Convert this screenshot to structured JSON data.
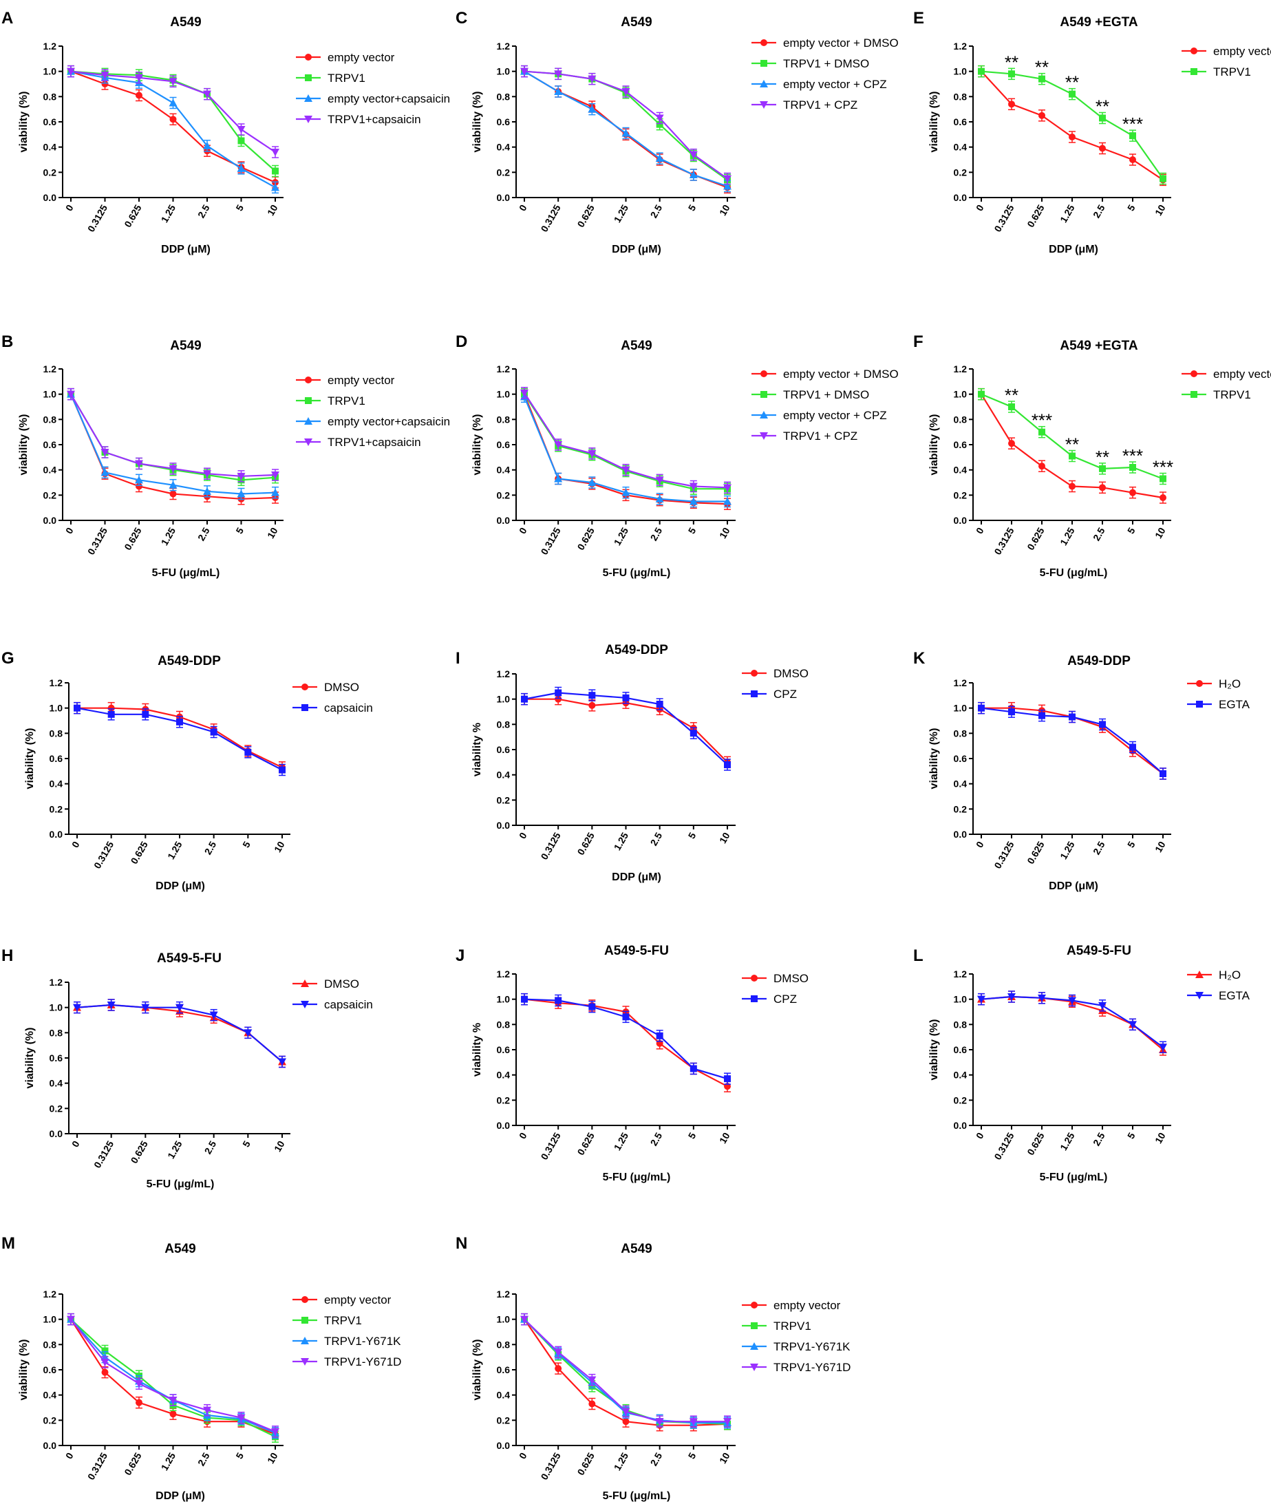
{
  "figure": {
    "description_free": true
  },
  "chart_data": [
    {
      "id": "A",
      "type": "line",
      "panel_label": "A",
      "title": "A549",
      "xlabel": "DDP (μM)",
      "ylabel": "viability (%)",
      "categories": [
        "0",
        "0.3125",
        "0.625",
        "1.25",
        "2.5",
        "5",
        "10"
      ],
      "ylim": [
        0,
        1.2
      ],
      "yticks": [
        "0.0",
        "0.2",
        "0.4",
        "0.6",
        "0.8",
        "1.0",
        "1.2"
      ],
      "series": [
        {
          "name": "empty vector",
          "color": "#ff1a1a",
          "marker": "circle",
          "values": [
            1.0,
            0.9,
            0.81,
            0.62,
            0.37,
            0.24,
            0.12
          ]
        },
        {
          "name": "TRPV1",
          "color": "#33e633",
          "marker": "square",
          "values": [
            1.0,
            0.98,
            0.97,
            0.93,
            0.82,
            0.45,
            0.21
          ]
        },
        {
          "name": "empty vector+capsaicin",
          "color": "#1e90ff",
          "marker": "triangle-up",
          "values": [
            1.0,
            0.95,
            0.91,
            0.75,
            0.41,
            0.23,
            0.08
          ]
        },
        {
          "name": "TRPV1+capsaicin",
          "color": "#9b30ff",
          "marker": "triangle-down",
          "values": [
            1.0,
            0.97,
            0.95,
            0.92,
            0.82,
            0.54,
            0.36
          ]
        }
      ],
      "annotations": []
    },
    {
      "id": "C",
      "type": "line",
      "panel_label": "C",
      "title": "A549",
      "xlabel": "DDP (μM)",
      "ylabel": "viability (%)",
      "categories": [
        "0",
        "0.3125",
        "0.625",
        "1.25",
        "2.5",
        "5",
        "10"
      ],
      "ylim": [
        0,
        1.2
      ],
      "yticks": [
        "0.0",
        "0.2",
        "0.4",
        "0.6",
        "0.8",
        "1.0",
        "1.2"
      ],
      "series": [
        {
          "name": "empty vector + DMSO",
          "color": "#ff1a1a",
          "marker": "circle",
          "values": [
            1.0,
            0.84,
            0.72,
            0.5,
            0.3,
            0.18,
            0.08
          ]
        },
        {
          "name": "TRPV1 + DMSO",
          "color": "#33e633",
          "marker": "square",
          "values": [
            1.0,
            0.98,
            0.94,
            0.83,
            0.58,
            0.33,
            0.14
          ]
        },
        {
          "name": "empty vector + CPZ",
          "color": "#1e90ff",
          "marker": "triangle-up",
          "values": [
            1.0,
            0.84,
            0.7,
            0.51,
            0.31,
            0.18,
            0.09
          ]
        },
        {
          "name": "TRPV1 + CPZ",
          "color": "#9b30ff",
          "marker": "triangle-down",
          "values": [
            1.0,
            0.98,
            0.94,
            0.84,
            0.63,
            0.34,
            0.15
          ]
        }
      ],
      "annotations": []
    },
    {
      "id": "E",
      "type": "line",
      "panel_label": "E",
      "title": "A549 +EGTA",
      "xlabel": "DDP (μM)",
      "ylabel": "viability (%)",
      "categories": [
        "0",
        "0.3125",
        "0.625",
        "1.25",
        "2.5",
        "5",
        "10"
      ],
      "ylim": [
        0,
        1.2
      ],
      "yticks": [
        "0.0",
        "0.2",
        "0.4",
        "0.6",
        "0.8",
        "1.0",
        "1.2"
      ],
      "series": [
        {
          "name": "empty vector",
          "color": "#ff1a1a",
          "marker": "circle",
          "values": [
            1.0,
            0.74,
            0.65,
            0.48,
            0.39,
            0.3,
            0.14
          ]
        },
        {
          "name": "TRPV1",
          "color": "#33e633",
          "marker": "square",
          "values": [
            1.0,
            0.98,
            0.94,
            0.82,
            0.63,
            0.49,
            0.15
          ]
        }
      ],
      "annotations": [
        "",
        "**",
        "**",
        "**",
        "**",
        "***",
        ""
      ]
    },
    {
      "id": "B",
      "type": "line",
      "panel_label": "B",
      "title": "A549",
      "xlabel": "5-FU (μg/mL)",
      "ylabel": "viability (%)",
      "categories": [
        "0",
        "0.3125",
        "0.625",
        "1.25",
        "2.5",
        "5",
        "10"
      ],
      "ylim": [
        0,
        1.2
      ],
      "yticks": [
        "0.0",
        "0.2",
        "0.4",
        "0.6",
        "0.8",
        "1.0",
        "1.2"
      ],
      "series": [
        {
          "name": "empty vector",
          "color": "#ff1a1a",
          "marker": "circle",
          "values": [
            1.0,
            0.37,
            0.27,
            0.21,
            0.19,
            0.17,
            0.18
          ]
        },
        {
          "name": "TRPV1",
          "color": "#33e633",
          "marker": "square",
          "values": [
            1.0,
            0.54,
            0.45,
            0.4,
            0.36,
            0.32,
            0.34
          ]
        },
        {
          "name": "empty vector+capsaicin",
          "color": "#1e90ff",
          "marker": "triangle-up",
          "values": [
            1.0,
            0.38,
            0.32,
            0.28,
            0.23,
            0.21,
            0.22
          ]
        },
        {
          "name": "TRPV1+capsaicin",
          "color": "#9b30ff",
          "marker": "triangle-down",
          "values": [
            1.0,
            0.54,
            0.45,
            0.41,
            0.37,
            0.35,
            0.36
          ]
        }
      ],
      "annotations": []
    },
    {
      "id": "D",
      "type": "line",
      "panel_label": "D",
      "title": "A549",
      "xlabel": "5-FU (μg/mL)",
      "ylabel": "viability (%)",
      "categories": [
        "0",
        "0.3125",
        "0.625",
        "1.25",
        "2.5",
        "5",
        "10"
      ],
      "ylim": [
        0,
        1.2
      ],
      "yticks": [
        "0.0",
        "0.2",
        "0.4",
        "0.6",
        "0.8",
        "1.0",
        "1.2"
      ],
      "series": [
        {
          "name": "empty vector + DMSO",
          "color": "#ff1a1a",
          "marker": "circle",
          "values": [
            1.0,
            0.33,
            0.29,
            0.2,
            0.16,
            0.14,
            0.13
          ]
        },
        {
          "name": "TRPV1 + DMSO",
          "color": "#33e633",
          "marker": "square",
          "values": [
            1.0,
            0.59,
            0.52,
            0.39,
            0.31,
            0.25,
            0.25
          ]
        },
        {
          "name": "empty vector + CPZ",
          "color": "#1e90ff",
          "marker": "triangle-up",
          "values": [
            0.98,
            0.33,
            0.3,
            0.22,
            0.17,
            0.15,
            0.15
          ]
        },
        {
          "name": "TRPV1 + CPZ",
          "color": "#9b30ff",
          "marker": "triangle-down",
          "values": [
            1.01,
            0.6,
            0.53,
            0.4,
            0.32,
            0.27,
            0.26
          ]
        }
      ],
      "annotations": []
    },
    {
      "id": "F",
      "type": "line",
      "panel_label": "F",
      "title": "A549 +EGTA",
      "xlabel": "5-FU (μg/mL)",
      "ylabel": "viability (%)",
      "categories": [
        "0",
        "0.3125",
        "0.625",
        "1.25",
        "2.5",
        "5",
        "10"
      ],
      "ylim": [
        0,
        1.2
      ],
      "yticks": [
        "0.0",
        "0.2",
        "0.4",
        "0.6",
        "0.8",
        "1.0",
        "1.2"
      ],
      "series": [
        {
          "name": "empty vector",
          "color": "#ff1a1a",
          "marker": "circle",
          "values": [
            1.0,
            0.61,
            0.43,
            0.27,
            0.26,
            0.22,
            0.18
          ]
        },
        {
          "name": "TRPV1",
          "color": "#33e633",
          "marker": "square",
          "values": [
            1.0,
            0.9,
            0.7,
            0.51,
            0.41,
            0.42,
            0.33
          ]
        }
      ],
      "annotations": [
        "",
        "**",
        "***",
        "**",
        "**",
        "***",
        "***"
      ]
    },
    {
      "id": "G",
      "type": "line",
      "panel_label": "G",
      "title": "A549-DDP",
      "xlabel": "DDP (μM)",
      "ylabel": "viability (%)",
      "categories": [
        "0",
        "0.3125",
        "0.625",
        "1.25",
        "2.5",
        "5",
        "10"
      ],
      "ylim": [
        0,
        1.2
      ],
      "yticks": [
        "0.0",
        "0.2",
        "0.4",
        "0.6",
        "0.8",
        "1.0",
        "1.2"
      ],
      "series": [
        {
          "name": "DMSO",
          "color": "#ff1a1a",
          "marker": "circle",
          "values": [
            1.0,
            1.0,
            0.99,
            0.93,
            0.83,
            0.66,
            0.53
          ]
        },
        {
          "name": "capsaicin",
          "color": "#1a1aff",
          "marker": "square",
          "values": [
            1.0,
            0.95,
            0.95,
            0.89,
            0.81,
            0.65,
            0.51
          ]
        }
      ],
      "annotations": []
    },
    {
      "id": "I",
      "type": "line",
      "panel_label": "I",
      "title": "A549-DDP",
      "xlabel": "DDP (μM)",
      "ylabel": "viability %",
      "categories": [
        "0",
        "0.3125",
        "0.625",
        "1.25",
        "2.5",
        "5",
        "10"
      ],
      "ylim": [
        0,
        1.2
      ],
      "yticks": [
        "0.0",
        "0.2",
        "0.4",
        "0.6",
        "0.8",
        "1.0",
        "1.2"
      ],
      "series": [
        {
          "name": "DMSO",
          "color": "#ff1a1a",
          "marker": "circle",
          "values": [
            1.0,
            1.0,
            0.95,
            0.97,
            0.92,
            0.77,
            0.5
          ]
        },
        {
          "name": "CPZ",
          "color": "#1a1aff",
          "marker": "square",
          "values": [
            1.0,
            1.05,
            1.03,
            1.01,
            0.96,
            0.73,
            0.48
          ]
        }
      ],
      "annotations": []
    },
    {
      "id": "K",
      "type": "line",
      "panel_label": "K",
      "title": "A549-DDP",
      "xlabel": "DDP (μM)",
      "ylabel": "viability (%)",
      "categories": [
        "0",
        "0.3125",
        "0.625",
        "1.25",
        "2.5",
        "5",
        "10"
      ],
      "ylim": [
        0,
        1.2
      ],
      "yticks": [
        "0.0",
        "0.2",
        "0.4",
        "0.6",
        "0.8",
        "1.0",
        "1.2"
      ],
      "series": [
        {
          "name": "H₂O",
          "color": "#ff1a1a",
          "marker": "circle",
          "values": [
            1.0,
            1.0,
            0.98,
            0.93,
            0.85,
            0.66,
            0.48
          ]
        },
        {
          "name": "EGTA",
          "color": "#1a1aff",
          "marker": "square",
          "values": [
            1.0,
            0.97,
            0.94,
            0.93,
            0.87,
            0.69,
            0.48
          ]
        }
      ],
      "annotations": []
    },
    {
      "id": "H",
      "type": "line",
      "panel_label": "H",
      "title": "A549-5-FU",
      "xlabel": "5-FU (μg/mL)",
      "ylabel": "viability (%)",
      "categories": [
        "0",
        "0.3125",
        "0.625",
        "1.25",
        "2.5",
        "5",
        "10"
      ],
      "ylim": [
        0,
        1.2
      ],
      "yticks": [
        "0.0",
        "0.2",
        "0.4",
        "0.6",
        "0.8",
        "1.0",
        "1.2"
      ],
      "series": [
        {
          "name": "DMSO",
          "color": "#ff1a1a",
          "marker": "triangle-up",
          "values": [
            1.0,
            1.02,
            1.0,
            0.97,
            0.92,
            0.8,
            0.57
          ]
        },
        {
          "name": "capsaicin",
          "color": "#1a1aff",
          "marker": "triangle-down",
          "values": [
            1.0,
            1.02,
            1.0,
            1.0,
            0.94,
            0.8,
            0.57
          ]
        }
      ],
      "annotations": []
    },
    {
      "id": "J",
      "type": "line",
      "panel_label": "J",
      "title": "A549-5-FU",
      "xlabel": "5-FU (μg/mL)",
      "ylabel": "viability %",
      "categories": [
        "0",
        "0.3125",
        "0.625",
        "1.25",
        "2.5",
        "5",
        "10"
      ],
      "ylim": [
        0,
        1.2
      ],
      "yticks": [
        "0.0",
        "0.2",
        "0.4",
        "0.6",
        "0.8",
        "1.0",
        "1.2"
      ],
      "series": [
        {
          "name": "DMSO",
          "color": "#ff1a1a",
          "marker": "circle",
          "values": [
            1.0,
            0.97,
            0.95,
            0.9,
            0.65,
            0.45,
            0.31
          ]
        },
        {
          "name": "CPZ",
          "color": "#1a1aff",
          "marker": "square",
          "values": [
            1.0,
            0.99,
            0.94,
            0.86,
            0.71,
            0.45,
            0.37
          ]
        }
      ],
      "annotations": []
    },
    {
      "id": "L",
      "type": "line",
      "panel_label": "L",
      "title": "A549-5-FU",
      "xlabel": "5-FU (μg/mL)",
      "ylabel": "viability (%)",
      "categories": [
        "0",
        "0.3125",
        "0.625",
        "1.25",
        "2.5",
        "5",
        "10"
      ],
      "ylim": [
        0,
        1.2
      ],
      "yticks": [
        "0.0",
        "0.2",
        "0.4",
        "0.6",
        "0.8",
        "1.0",
        "1.2"
      ],
      "series": [
        {
          "name": "H₂O",
          "color": "#ff1a1a",
          "marker": "triangle-up",
          "values": [
            1.0,
            1.02,
            1.01,
            0.98,
            0.91,
            0.8,
            0.6
          ]
        },
        {
          "name": "EGTA",
          "color": "#1a1aff",
          "marker": "triangle-down",
          "values": [
            1.0,
            1.02,
            1.01,
            0.99,
            0.95,
            0.8,
            0.62
          ]
        }
      ],
      "annotations": []
    },
    {
      "id": "M",
      "type": "line",
      "panel_label": "M",
      "title": "A549",
      "xlabel": "DDP (μM)",
      "ylabel": "viability (%)",
      "categories": [
        "0",
        "0.3125",
        "0.625",
        "1.25",
        "2.5",
        "5",
        "10"
      ],
      "ylim": [
        0,
        1.2
      ],
      "yticks": [
        "0.0",
        "0.2",
        "0.4",
        "0.6",
        "0.8",
        "1.0",
        "1.2"
      ],
      "series": [
        {
          "name": "empty vector",
          "color": "#ff1a1a",
          "marker": "circle",
          "values": [
            1.0,
            0.58,
            0.34,
            0.25,
            0.19,
            0.19,
            0.09
          ]
        },
        {
          "name": "TRPV1",
          "color": "#33e633",
          "marker": "square",
          "values": [
            1.0,
            0.75,
            0.55,
            0.32,
            0.22,
            0.2,
            0.07
          ]
        },
        {
          "name": "TRPV1-Y671K",
          "color": "#1e90ff",
          "marker": "triangle-up",
          "values": [
            1.0,
            0.7,
            0.51,
            0.36,
            0.24,
            0.21,
            0.1
          ]
        },
        {
          "name": "TRPV1-Y671D",
          "color": "#9b30ff",
          "marker": "triangle-down",
          "values": [
            1.0,
            0.66,
            0.49,
            0.36,
            0.28,
            0.22,
            0.11
          ]
        }
      ],
      "annotations": []
    },
    {
      "id": "N",
      "type": "line",
      "panel_label": "N",
      "title": "A549",
      "xlabel": "5-FU (μg/mL)",
      "ylabel": "viability (%)",
      "categories": [
        "0",
        "0.3125",
        "0.625",
        "1.25",
        "2.5",
        "5",
        "10"
      ],
      "ylim": [
        0,
        1.2
      ],
      "yticks": [
        "0.0",
        "0.2",
        "0.4",
        "0.6",
        "0.8",
        "1.0",
        "1.2"
      ],
      "series": [
        {
          "name": "empty vector",
          "color": "#ff1a1a",
          "marker": "circle",
          "values": [
            1.0,
            0.61,
            0.33,
            0.19,
            0.16,
            0.16,
            0.17
          ]
        },
        {
          "name": "TRPV1",
          "color": "#33e633",
          "marker": "square",
          "values": [
            1.0,
            0.72,
            0.47,
            0.28,
            0.19,
            0.18,
            0.17
          ]
        },
        {
          "name": "TRPV1-Y671K",
          "color": "#1e90ff",
          "marker": "triangle-up",
          "values": [
            1.0,
            0.73,
            0.5,
            0.26,
            0.2,
            0.18,
            0.18
          ]
        },
        {
          "name": "TRPV1-Y671D",
          "color": "#9b30ff",
          "marker": "triangle-down",
          "values": [
            1.0,
            0.74,
            0.52,
            0.27,
            0.19,
            0.19,
            0.19
          ]
        }
      ],
      "annotations": []
    }
  ]
}
